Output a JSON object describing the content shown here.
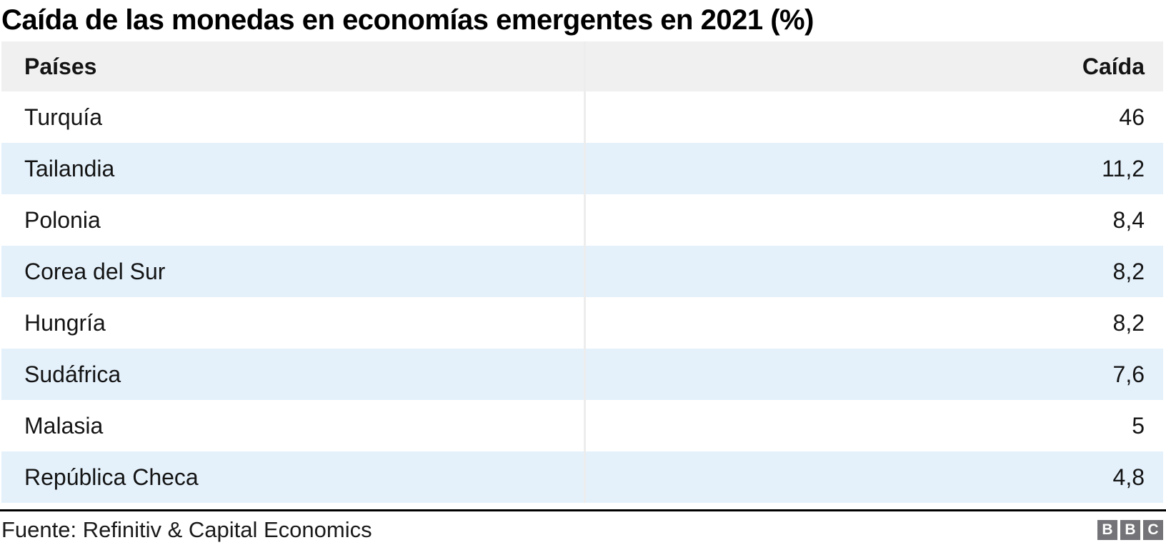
{
  "title": "Caída de las monedas en economías emergentes en 2021 (%)",
  "table": {
    "columns": [
      {
        "label": "Países"
      },
      {
        "label": "Caída"
      }
    ],
    "rows": [
      {
        "country": "Turquía",
        "value": "46"
      },
      {
        "country": "Tailandia",
        "value": "11,2"
      },
      {
        "country": "Polonia",
        "value": "8,4"
      },
      {
        "country": "Corea del Sur",
        "value": "8,2"
      },
      {
        "country": "Hungría",
        "value": "8,2"
      },
      {
        "country": "Sudáfrica",
        "value": "7,6"
      },
      {
        "country": "Malasia",
        "value": "5"
      },
      {
        "country": "República Checa",
        "value": "4,8"
      }
    ]
  },
  "footer": {
    "source": "Fuente: Refinitiv & Capital Economics",
    "logo_letters": [
      "B",
      "B",
      "C"
    ]
  },
  "colors": {
    "header_bg": "#f0f0f0",
    "alt_row": "#e4f1fb",
    "divider": "#ededed",
    "rule": "#000000",
    "logo_bg": "#747478"
  },
  "chart_data": {
    "type": "table",
    "title": "Caída de las monedas en economías emergentes en 2021 (%)",
    "columns": [
      "Países",
      "Caída"
    ],
    "categories": [
      "Turquía",
      "Tailandia",
      "Polonia",
      "Corea del Sur",
      "Hungría",
      "Sudáfrica",
      "Malasia",
      "República Checa"
    ],
    "values": [
      46,
      11.2,
      8.4,
      8.2,
      8.2,
      7.6,
      5,
      4.8
    ],
    "value_labels": [
      "46",
      "11,2",
      "8,4",
      "8,2",
      "8,2",
      "7,6",
      "5",
      "4,8"
    ],
    "decimal_separator": ",",
    "row_striping": "alternating white / light blue",
    "source": "Fuente: Refinitiv & Capital Economics",
    "branding": "BBC"
  }
}
